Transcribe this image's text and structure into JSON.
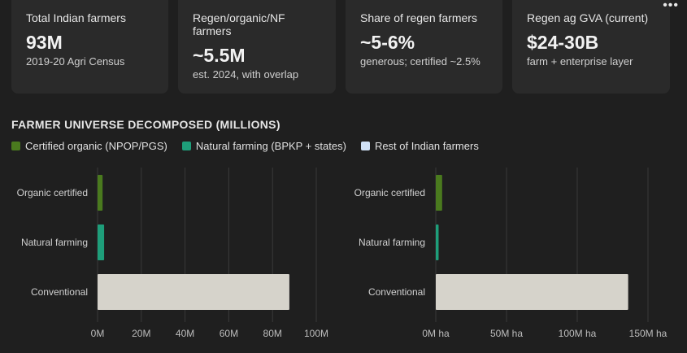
{
  "cards": [
    {
      "label": "Total Indian farmers",
      "value": "93M",
      "sub": "2019-20 Agri Census"
    },
    {
      "label": "Regen/organic/NF farmers",
      "value": "~5.5M",
      "sub": "est. 2024, with overlap"
    },
    {
      "label": "Share of regen farmers",
      "value": "~5-6%",
      "sub": "generous; certified ~2.5%"
    },
    {
      "label": "Regen ag GVA (current)",
      "value": "$24-30B",
      "sub": "farm + enterprise layer"
    }
  ],
  "more_icon": "more-horizontal-icon",
  "section_title": "FARMER UNIVERSE DECOMPOSED (MILLIONS)",
  "legend": [
    {
      "label": "Certified organic (NPOP/PGS)",
      "color": "#4a7a1e"
    },
    {
      "label": "Natural farming (BPKP + states)",
      "color": "#1e9e7a"
    },
    {
      "label": "Rest of Indian farmers",
      "color": "#cfe0f5"
    }
  ],
  "chart_data": [
    {
      "type": "bar",
      "orientation": "horizontal",
      "categories": [
        "Organic certified",
        "Natural farming",
        "Conventional"
      ],
      "values": [
        2.3,
        3.0,
        87.7
      ],
      "colors": [
        "#4a7a1e",
        "#1e9e7a",
        "#d6d3cb"
      ],
      "xlim": [
        0,
        100
      ],
      "xticks": [
        "0M",
        "20M",
        "40M",
        "60M",
        "80M",
        "100M"
      ],
      "grid": true
    },
    {
      "type": "bar",
      "orientation": "horizontal",
      "categories": [
        "Organic certified",
        "Natural farming",
        "Conventional"
      ],
      "values": [
        4.5,
        2.0,
        136
      ],
      "colors": [
        "#4a7a1e",
        "#1e9e7a",
        "#d6d3cb"
      ],
      "xlim": [
        0,
        150
      ],
      "xticks": [
        "0M ha",
        "50M ha",
        "100M ha",
        "150M ha"
      ],
      "grid": true
    }
  ]
}
